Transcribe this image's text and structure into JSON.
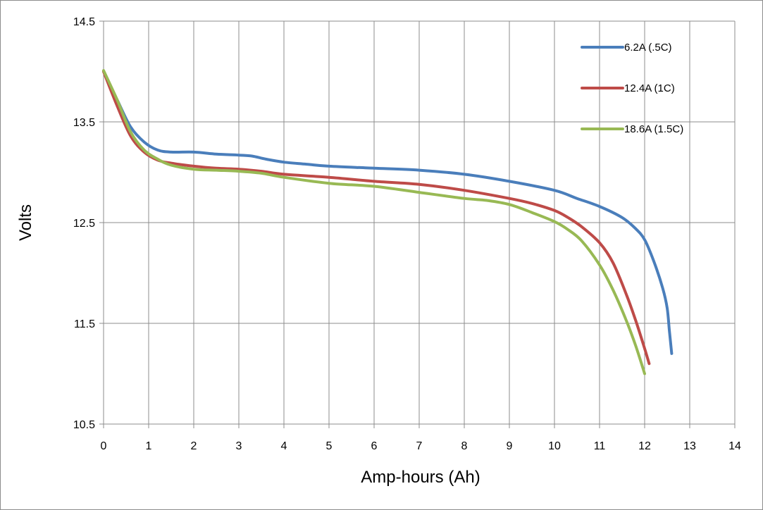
{
  "chart_data": {
    "type": "line",
    "xlabel": "Amp-hours (Ah)",
    "ylabel": "Volts",
    "xlim": [
      0,
      14
    ],
    "ylim": [
      10.5,
      14.5
    ],
    "x_ticks": [
      "0",
      "1",
      "2",
      "3",
      "4",
      "5",
      "6",
      "7",
      "8",
      "9",
      "10",
      "11",
      "12",
      "13",
      "14"
    ],
    "y_ticks": [
      "10.5",
      "11.5",
      "12.5",
      "13.5",
      "14.5"
    ],
    "grid": true,
    "legend_position": "top-right",
    "series": [
      {
        "name": "6.2A (.5C)",
        "color": "#4a7ebb",
        "points": [
          [
            0,
            14.0
          ],
          [
            0.3,
            13.72
          ],
          [
            0.6,
            13.45
          ],
          [
            0.9,
            13.3
          ],
          [
            1.2,
            13.22
          ],
          [
            1.5,
            13.2
          ],
          [
            2,
            13.2
          ],
          [
            2.5,
            13.18
          ],
          [
            3,
            13.17
          ],
          [
            3.3,
            13.16
          ],
          [
            3.6,
            13.13
          ],
          [
            4,
            13.1
          ],
          [
            4.5,
            13.08
          ],
          [
            5,
            13.06
          ],
          [
            6,
            13.04
          ],
          [
            7,
            13.02
          ],
          [
            8,
            12.98
          ],
          [
            9,
            12.91
          ],
          [
            10,
            12.82
          ],
          [
            10.5,
            12.74
          ],
          [
            11,
            12.66
          ],
          [
            11.5,
            12.55
          ],
          [
            11.8,
            12.44
          ],
          [
            12,
            12.33
          ],
          [
            12.2,
            12.12
          ],
          [
            12.4,
            11.85
          ],
          [
            12.5,
            11.65
          ],
          [
            12.55,
            11.42
          ],
          [
            12.6,
            11.2
          ]
        ]
      },
      {
        "name": "12.4A (1C)",
        "color": "#be4b48",
        "points": [
          [
            0,
            14.0
          ],
          [
            0.3,
            13.66
          ],
          [
            0.6,
            13.36
          ],
          [
            0.9,
            13.2
          ],
          [
            1.2,
            13.12
          ],
          [
            1.5,
            13.09
          ],
          [
            2,
            13.06
          ],
          [
            2.5,
            13.04
          ],
          [
            3,
            13.03
          ],
          [
            3.5,
            13.01
          ],
          [
            4,
            12.98
          ],
          [
            5,
            12.95
          ],
          [
            6,
            12.91
          ],
          [
            7,
            12.88
          ],
          [
            8,
            12.82
          ],
          [
            9,
            12.74
          ],
          [
            9.5,
            12.69
          ],
          [
            10,
            12.62
          ],
          [
            10.3,
            12.55
          ],
          [
            10.6,
            12.46
          ],
          [
            11,
            12.3
          ],
          [
            11.3,
            12.1
          ],
          [
            11.6,
            11.78
          ],
          [
            11.8,
            11.53
          ],
          [
            12,
            11.25
          ],
          [
            12.1,
            11.1
          ]
        ]
      },
      {
        "name": "18.6A (1.5C)",
        "color": "#98b954",
        "points": [
          [
            0,
            14.01
          ],
          [
            0.3,
            13.72
          ],
          [
            0.6,
            13.4
          ],
          [
            0.9,
            13.22
          ],
          [
            1.2,
            13.13
          ],
          [
            1.5,
            13.07
          ],
          [
            2,
            13.03
          ],
          [
            2.5,
            13.02
          ],
          [
            3,
            13.01
          ],
          [
            3.5,
            12.99
          ],
          [
            4,
            12.95
          ],
          [
            5,
            12.89
          ],
          [
            6,
            12.86
          ],
          [
            7,
            12.8
          ],
          [
            8,
            12.74
          ],
          [
            8.5,
            12.72
          ],
          [
            9,
            12.68
          ],
          [
            9.5,
            12.6
          ],
          [
            10,
            12.51
          ],
          [
            10.3,
            12.43
          ],
          [
            10.6,
            12.32
          ],
          [
            11,
            12.08
          ],
          [
            11.3,
            11.83
          ],
          [
            11.6,
            11.52
          ],
          [
            11.8,
            11.28
          ],
          [
            12,
            11.0
          ]
        ]
      }
    ]
  }
}
